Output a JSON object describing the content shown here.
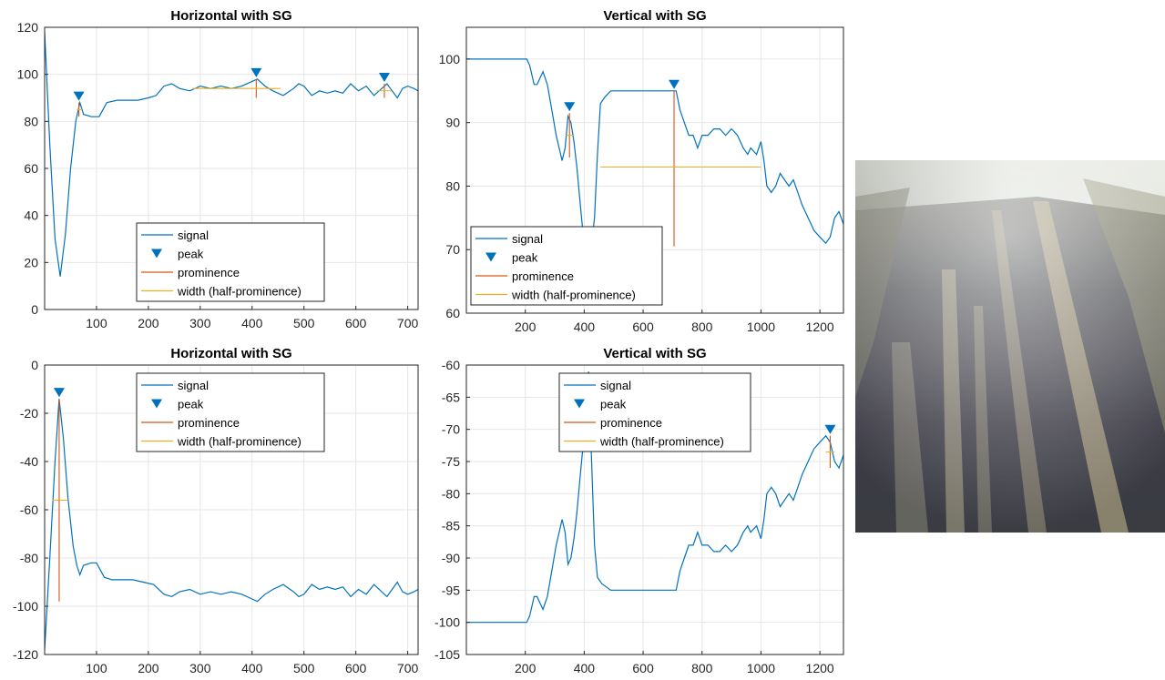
{
  "colors": {
    "signal": "#0072BD",
    "prominence": "#D95319",
    "width": "#EDB120",
    "grid": "#e6e6e6",
    "axes": "#262626"
  },
  "photo": {
    "icon": "road-surface-photo"
  },
  "chart_data": [
    {
      "type": "line",
      "title": "Horizontal with SG",
      "xlim": [
        0,
        720
      ],
      "ylim": [
        0,
        120
      ],
      "xticks": [
        100,
        200,
        300,
        400,
        500,
        600,
        700
      ],
      "yticks": [
        0,
        20,
        40,
        60,
        80,
        100,
        120
      ],
      "grid": true,
      "legend_position": "bottom-center",
      "legend": [
        "signal",
        "peak",
        "prominence",
        "width (half-prominence)"
      ],
      "signal": [
        [
          0,
          118
        ],
        [
          10,
          70
        ],
        [
          20,
          30
        ],
        [
          30,
          14
        ],
        [
          40,
          32
        ],
        [
          50,
          60
        ],
        [
          60,
          80
        ],
        [
          68,
          88
        ],
        [
          75,
          83
        ],
        [
          90,
          82
        ],
        [
          105,
          82
        ],
        [
          120,
          88
        ],
        [
          140,
          89
        ],
        [
          160,
          89
        ],
        [
          180,
          89
        ],
        [
          200,
          90
        ],
        [
          215,
          91
        ],
        [
          230,
          95
        ],
        [
          245,
          96
        ],
        [
          260,
          94
        ],
        [
          280,
          93
        ],
        [
          300,
          95
        ],
        [
          320,
          94
        ],
        [
          340,
          95
        ],
        [
          360,
          94
        ],
        [
          380,
          95
        ],
        [
          400,
          97
        ],
        [
          410,
          98
        ],
        [
          425,
          95
        ],
        [
          440,
          93
        ],
        [
          460,
          91
        ],
        [
          480,
          94
        ],
        [
          490,
          96
        ],
        [
          500,
          95
        ],
        [
          515,
          91
        ],
        [
          530,
          93
        ],
        [
          545,
          92
        ],
        [
          560,
          93
        ],
        [
          575,
          92
        ],
        [
          590,
          96
        ],
        [
          605,
          93
        ],
        [
          620,
          95
        ],
        [
          635,
          91
        ],
        [
          650,
          94
        ],
        [
          660,
          96
        ],
        [
          670,
          93
        ],
        [
          680,
          90
        ],
        [
          690,
          94
        ],
        [
          700,
          95
        ],
        [
          712,
          94
        ],
        [
          720,
          93
        ]
      ],
      "peaks": [
        {
          "x": 66,
          "y": 88,
          "prominence_base": 82,
          "width_y": 85,
          "width_x": [
            62,
            72
          ]
        },
        {
          "x": 408,
          "y": 98,
          "prominence_base": 90,
          "width_y": 94,
          "width_x": [
            285,
            455
          ]
        },
        {
          "x": 655,
          "y": 96,
          "prominence_base": 90,
          "width_y": 93,
          "width_x": [
            640,
            668
          ]
        }
      ]
    },
    {
      "type": "line",
      "title": "Vertical with SG",
      "xlim": [
        0,
        1280
      ],
      "ylim": [
        60,
        105
      ],
      "xticks": [
        200,
        400,
        600,
        800,
        1000,
        1200
      ],
      "yticks": [
        60,
        70,
        80,
        90,
        100
      ],
      "grid": true,
      "legend_position": "bottom-left",
      "legend": [
        "signal",
        "peak",
        "prominence",
        "width (half-prominence)"
      ],
      "signal": [
        [
          0,
          100
        ],
        [
          190,
          100
        ],
        [
          205,
          100
        ],
        [
          215,
          99
        ],
        [
          230,
          96
        ],
        [
          240,
          96
        ],
        [
          250,
          97
        ],
        [
          260,
          98
        ],
        [
          275,
          96
        ],
        [
          290,
          92
        ],
        [
          305,
          88
        ],
        [
          315,
          86
        ],
        [
          325,
          84
        ],
        [
          335,
          86
        ],
        [
          345,
          91
        ],
        [
          355,
          90
        ],
        [
          365,
          87
        ],
        [
          375,
          83
        ],
        [
          385,
          78
        ],
        [
          395,
          73
        ],
        [
          405,
          70
        ],
        [
          415,
          69
        ],
        [
          425,
          71
        ],
        [
          435,
          75
        ],
        [
          445,
          85
        ],
        [
          455,
          93
        ],
        [
          470,
          94
        ],
        [
          490,
          95
        ],
        [
          550,
          95
        ],
        [
          620,
          95
        ],
        [
          690,
          95
        ],
        [
          705,
          95
        ],
        [
          712,
          95
        ],
        [
          725,
          92
        ],
        [
          740,
          90
        ],
        [
          755,
          88
        ],
        [
          770,
          88
        ],
        [
          785,
          86
        ],
        [
          800,
          88
        ],
        [
          820,
          88
        ],
        [
          840,
          89
        ],
        [
          860,
          89
        ],
        [
          880,
          88
        ],
        [
          900,
          89
        ],
        [
          920,
          88
        ],
        [
          940,
          86
        ],
        [
          955,
          85
        ],
        [
          965,
          86
        ],
        [
          985,
          85
        ],
        [
          1000,
          87
        ],
        [
          1010,
          84
        ],
        [
          1020,
          80
        ],
        [
          1035,
          79
        ],
        [
          1050,
          80
        ],
        [
          1065,
          82
        ],
        [
          1080,
          81
        ],
        [
          1095,
          80
        ],
        [
          1110,
          81
        ],
        [
          1125,
          79
        ],
        [
          1140,
          77
        ],
        [
          1160,
          75
        ],
        [
          1180,
          73
        ],
        [
          1200,
          72
        ],
        [
          1220,
          71
        ],
        [
          1235,
          72
        ],
        [
          1250,
          75
        ],
        [
          1265,
          76
        ],
        [
          1280,
          74
        ]
      ],
      "peaks": [
        {
          "x": 350,
          "y": 91.5,
          "prominence_base": 84.5,
          "width_y": 88,
          "width_x": [
            338,
            362
          ]
        },
        {
          "x": 705,
          "y": 95,
          "prominence_base": 70.5,
          "width_y": 83,
          "width_x": [
            455,
            1000
          ]
        }
      ]
    },
    {
      "type": "line",
      "title": "Horizontal with SG",
      "xlim": [
        0,
        720
      ],
      "ylim": [
        -120,
        0
      ],
      "xticks": [
        100,
        200,
        300,
        400,
        500,
        600,
        700
      ],
      "yticks": [
        -120,
        -100,
        -80,
        -60,
        -40,
        -20,
        0
      ],
      "grid": true,
      "legend_position": "top-center",
      "legend": [
        "signal",
        "peak",
        "prominence",
        "width (half-prominence)"
      ],
      "signal": [
        [
          0,
          -118
        ],
        [
          10,
          -80
        ],
        [
          20,
          -40
        ],
        [
          28,
          -14
        ],
        [
          36,
          -30
        ],
        [
          45,
          -55
        ],
        [
          55,
          -75
        ],
        [
          62,
          -83
        ],
        [
          68,
          -87
        ],
        [
          75,
          -83
        ],
        [
          90,
          -82
        ],
        [
          100,
          -82
        ],
        [
          115,
          -88
        ],
        [
          130,
          -89
        ],
        [
          150,
          -89
        ],
        [
          170,
          -89
        ],
        [
          190,
          -90
        ],
        [
          210,
          -91
        ],
        [
          230,
          -95
        ],
        [
          245,
          -96
        ],
        [
          260,
          -94
        ],
        [
          280,
          -93
        ],
        [
          300,
          -95
        ],
        [
          320,
          -94
        ],
        [
          340,
          -95
        ],
        [
          360,
          -94
        ],
        [
          380,
          -95
        ],
        [
          400,
          -97
        ],
        [
          410,
          -98
        ],
        [
          425,
          -95
        ],
        [
          440,
          -93
        ],
        [
          460,
          -91
        ],
        [
          480,
          -94
        ],
        [
          490,
          -96
        ],
        [
          500,
          -95
        ],
        [
          515,
          -91
        ],
        [
          530,
          -93
        ],
        [
          545,
          -92
        ],
        [
          560,
          -93
        ],
        [
          575,
          -92
        ],
        [
          590,
          -96
        ],
        [
          605,
          -93
        ],
        [
          620,
          -95
        ],
        [
          635,
          -91
        ],
        [
          650,
          -94
        ],
        [
          660,
          -96
        ],
        [
          670,
          -93
        ],
        [
          680,
          -90
        ],
        [
          690,
          -94
        ],
        [
          700,
          -95
        ],
        [
          712,
          -94
        ],
        [
          720,
          -93
        ]
      ],
      "peaks": [
        {
          "x": 28,
          "y": -14,
          "prominence_base": -98,
          "width_y": -56,
          "width_x": [
            15,
            45
          ]
        }
      ]
    },
    {
      "type": "line",
      "title": "Vertical with SG",
      "xlim": [
        0,
        1280
      ],
      "ylim": [
        -105,
        -60
      ],
      "xticks": [
        200,
        400,
        600,
        800,
        1000,
        1200
      ],
      "yticks": [
        -105,
        -100,
        -95,
        -90,
        -85,
        -80,
        -75,
        -70,
        -65,
        -60
      ],
      "grid": true,
      "legend_position": "top-center",
      "legend": [
        "signal",
        "peak",
        "prominence",
        "width (half-prominence)"
      ],
      "signal": [
        [
          0,
          -100
        ],
        [
          190,
          -100
        ],
        [
          205,
          -100
        ],
        [
          215,
          -99
        ],
        [
          230,
          -96
        ],
        [
          240,
          -96
        ],
        [
          250,
          -97
        ],
        [
          260,
          -98
        ],
        [
          275,
          -96
        ],
        [
          290,
          -92
        ],
        [
          305,
          -88
        ],
        [
          315,
          -86
        ],
        [
          325,
          -84
        ],
        [
          335,
          -86
        ],
        [
          345,
          -91
        ],
        [
          355,
          -90
        ],
        [
          365,
          -87
        ],
        [
          375,
          -83
        ],
        [
          385,
          -78
        ],
        [
          395,
          -73
        ],
        [
          405,
          -68
        ],
        [
          415,
          -61
        ],
        [
          425,
          -75
        ],
        [
          435,
          -88
        ],
        [
          445,
          -93
        ],
        [
          460,
          -94
        ],
        [
          490,
          -95
        ],
        [
          550,
          -95
        ],
        [
          620,
          -95
        ],
        [
          690,
          -95
        ],
        [
          705,
          -95
        ],
        [
          712,
          -95
        ],
        [
          725,
          -92
        ],
        [
          740,
          -90
        ],
        [
          755,
          -88
        ],
        [
          770,
          -88
        ],
        [
          785,
          -86
        ],
        [
          800,
          -88
        ],
        [
          820,
          -88
        ],
        [
          840,
          -89
        ],
        [
          860,
          -89
        ],
        [
          880,
          -88
        ],
        [
          900,
          -89
        ],
        [
          920,
          -88
        ],
        [
          940,
          -86
        ],
        [
          955,
          -85
        ],
        [
          965,
          -86
        ],
        [
          985,
          -85
        ],
        [
          1000,
          -87
        ],
        [
          1010,
          -84
        ],
        [
          1020,
          -80
        ],
        [
          1035,
          -79
        ],
        [
          1050,
          -80
        ],
        [
          1065,
          -82
        ],
        [
          1080,
          -81
        ],
        [
          1095,
          -80
        ],
        [
          1110,
          -81
        ],
        [
          1125,
          -79
        ],
        [
          1140,
          -77
        ],
        [
          1160,
          -75
        ],
        [
          1180,
          -73
        ],
        [
          1200,
          -72
        ],
        [
          1220,
          -71
        ],
        [
          1235,
          -72
        ],
        [
          1250,
          -75
        ],
        [
          1265,
          -76
        ],
        [
          1280,
          -74
        ]
      ],
      "peaks": [
        {
          "x": 1235,
          "y": -71,
          "prominence_base": -76,
          "width_y": -73.5,
          "width_x": [
            1220,
            1250
          ]
        }
      ]
    }
  ]
}
